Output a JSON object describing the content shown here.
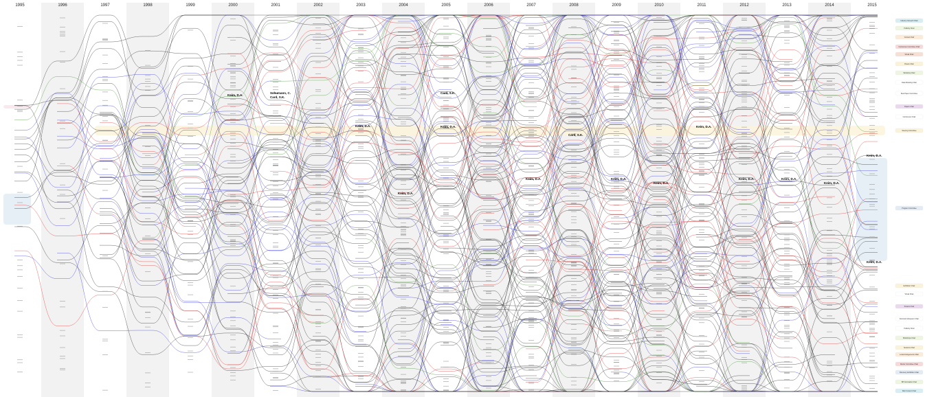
{
  "diagram": {
    "years": [
      "1995",
      "1996",
      "1997",
      "1998",
      "1999",
      "2000",
      "2001",
      "2002",
      "2003",
      "2004",
      "2005",
      "2006",
      "2007",
      "2008",
      "2009",
      "2010",
      "2011",
      "2012",
      "2013",
      "2014",
      "2015"
    ],
    "legend_roles": [
      {
        "label": "Industry Outreach Chair",
        "color": "#d7eef4"
      },
      {
        "label": "Publicity Chair",
        "color": "#eef6e1"
      },
      {
        "label": "Contest Chair",
        "color": "#fdebd9"
      },
      {
        "label": "Conference Committee Chair",
        "color": "#f8d9d9"
      },
      {
        "label": "Virtual Chair",
        "color": "#f6e0d5"
      },
      {
        "label": "Panels Chair",
        "color": "#fbf3d9"
      },
      {
        "label": "Workshop Chair",
        "color": "#eef6e1"
      },
      {
        "label": "Data Modeling Chair",
        "color": "#ffffff"
      },
      {
        "label": "Best Paper Committee",
        "color": "#ffffff"
      },
      {
        "label": "Papers Chair",
        "color": "#ead9ee"
      },
      {
        "label": "Conference Chair",
        "color": "#ffffff"
      },
      {
        "label": "Steering Committee",
        "color": "#fbf3d9"
      },
      {
        "label": "Program Committee",
        "color": "#e3ecf5"
      },
      {
        "label": "Exhibition Chair",
        "color": "#fbf3d9"
      },
      {
        "label": "Virtual Chair",
        "color": "#ffffff"
      },
      {
        "label": "Posters Chair",
        "color": "#ead9ee"
      },
      {
        "label": "Doctoral Colloquium Chair",
        "color": "#ffffff"
      },
      {
        "label": "Publicity Chair",
        "color": "#ffffff"
      },
      {
        "label": "Workshops Chair",
        "color": "#eef6e1"
      },
      {
        "label": "Sessions Chair",
        "color": "#fbf3d9"
      },
      {
        "label": "Local Arrangements Chair",
        "color": "#fdebd9"
      },
      {
        "label": "Mentor Committee Chair",
        "color": "#f8d9d9"
      },
      {
        "label": "Discovery Exhibition Chair",
        "color": "#e3ecf5"
      },
      {
        "label": "BP Nomination Chair",
        "color": "#eef6e1"
      },
      {
        "label": "Web Content Chair",
        "color": "#d7eef4"
      }
    ],
    "highlighted_names": [
      "Keim, D.A.",
      "Schumann, C.",
      "Card, S.K.",
      "Keim, D.A.",
      "Keim, D.A.",
      "Card, S.K.",
      "Keim, D.A.",
      "Keim, D.A.",
      "Card, S.K.",
      "Keim, D.A.",
      "Keim, D.A.",
      "Keim, D.A.",
      "Keim, D.A.",
      "Keim, D.A.",
      "Keim, D.A.",
      "Keim, D.A.",
      "Keim, D.A."
    ],
    "line_colors": {
      "default": "#333333",
      "red": "#e0393a",
      "blue": "#3a3ae0",
      "green": "#4c9a3c"
    }
  }
}
